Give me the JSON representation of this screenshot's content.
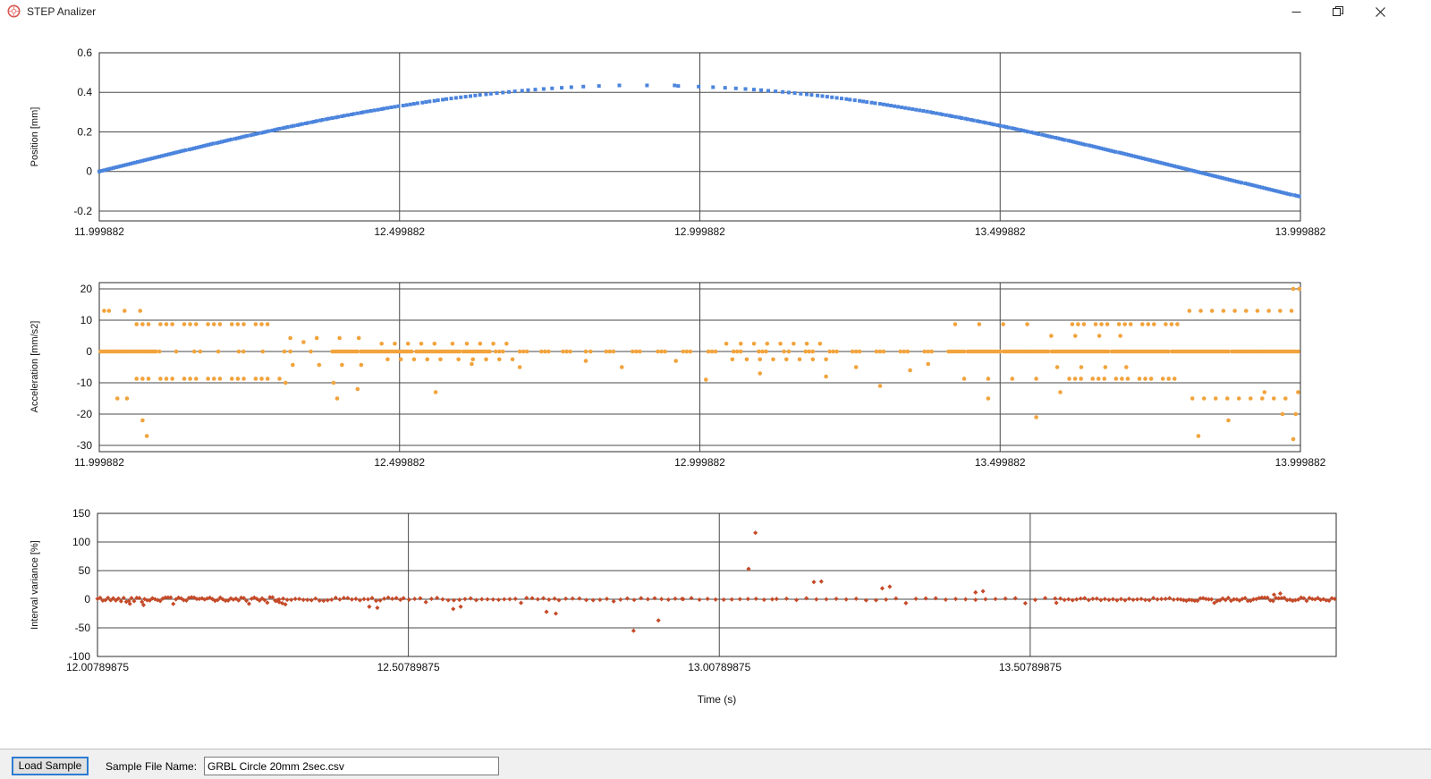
{
  "window": {
    "title": "STEP Analizer"
  },
  "footer": {
    "load_button_label": "Load Sample",
    "file_name_label": "Sample File Name:",
    "file_name_value": "GRBL Circle 20mm 2sec.csv"
  },
  "colors": {
    "position_series": "#4b84dd",
    "acceleration_series": "#f2a33c",
    "variance_series": "#c54a28",
    "grid": "#4a4a4a",
    "frame": "#2b2b2b",
    "tick_text": "#111111",
    "icon_red": "#d9534f",
    "footer_bg": "#f0f0f0",
    "button_border": "#2b7cd3"
  },
  "chart_data": [
    {
      "type": "scatter",
      "name": "position",
      "ylabel": "Position [mm]",
      "marker": "square",
      "xlim": [
        11.999882,
        13.999882
      ],
      "ylim": [
        -0.25,
        0.6
      ],
      "xtick_labels": [
        "11.999882",
        "12.499882",
        "12.999882",
        "13.499882",
        "13.999882"
      ],
      "xtick_values": [
        11.999882,
        12.499882,
        12.999882,
        13.499882,
        13.999882
      ],
      "ytick_values": [
        0.6,
        0.4,
        0.2,
        0,
        -0.2
      ],
      "model": {
        "kind": "quantized_sine",
        "amplitude": 0.435,
        "omega": 1.719,
        "t_start": 11.999882,
        "t_end": 13.999882,
        "step_mm": 0.003,
        "peak_value": 0.435,
        "start_value": 0,
        "end_value": -0.128
      }
    },
    {
      "type": "scatter",
      "name": "acceleration",
      "ylabel": "Acceleration [mm/s2]",
      "marker": "circle",
      "xlim": [
        11.999882,
        13.999882
      ],
      "ylim": [
        -32,
        22
      ],
      "xtick_labels": [
        "11.999882",
        "12.499882",
        "12.999882",
        "13.499882",
        "13.999882"
      ],
      "xtick_values": [
        11.999882,
        12.499882,
        12.999882,
        13.499882,
        13.999882
      ],
      "ytick_values": [
        20,
        10,
        0,
        -10,
        -20,
        -30
      ],
      "zero_runs": [
        [
          12.002,
          12.046,
          15
        ],
        [
          12.05,
          12.094,
          15
        ],
        [
          12.1,
          12.1,
          1
        ],
        [
          12.128,
          12.128,
          1
        ],
        [
          12.158,
          12.168,
          2
        ],
        [
          12.198,
          12.198,
          1
        ],
        [
          12.232,
          12.24,
          2
        ],
        [
          12.272,
          12.272,
          1
        ],
        [
          12.308,
          12.318,
          2
        ],
        [
          12.352,
          12.352,
          1
        ],
        [
          12.388,
          12.43,
          12
        ],
        [
          12.436,
          12.52,
          24
        ],
        [
          12.528,
          12.6,
          20
        ],
        [
          12.606,
          12.65,
          12
        ],
        [
          12.66,
          12.672,
          3
        ],
        [
          12.7,
          12.712,
          3
        ],
        [
          12.736,
          12.748,
          3
        ],
        [
          12.772,
          12.784,
          3
        ],
        [
          12.81,
          12.818,
          2
        ],
        [
          12.844,
          12.856,
          3
        ],
        [
          12.888,
          12.9,
          3
        ],
        [
          12.93,
          12.942,
          3
        ],
        [
          12.972,
          12.984,
          3
        ],
        [
          13.014,
          13.026,
          3
        ],
        [
          13.056,
          13.068,
          3
        ],
        [
          13.098,
          13.11,
          3
        ],
        [
          13.14,
          13.148,
          2
        ],
        [
          13.176,
          13.188,
          3
        ],
        [
          13.216,
          13.228,
          3
        ],
        [
          13.254,
          13.266,
          3
        ],
        [
          13.294,
          13.306,
          3
        ],
        [
          13.334,
          13.346,
          3
        ],
        [
          13.374,
          13.386,
          3
        ],
        [
          13.414,
          13.44,
          7
        ],
        [
          13.446,
          13.5,
          15
        ],
        [
          13.506,
          13.58,
          21
        ],
        [
          13.586,
          13.68,
          27
        ],
        [
          13.686,
          13.78,
          27
        ],
        [
          13.786,
          13.88,
          27
        ],
        [
          13.886,
          13.996,
          30
        ]
      ],
      "clusters": [
        {
          "y": 8.7,
          "runs": [
            [
              12.062,
              12.29,
              24,
              1
            ],
            [
              13.62,
              13.795,
              19,
              1
            ]
          ],
          "xs": [
            13.425,
            13.465,
            13.505,
            13.545
          ]
        },
        {
          "y": -8.7,
          "runs": [
            [
              12.062,
              12.3,
              25,
              1
            ],
            [
              13.615,
              13.8,
              20,
              1
            ]
          ],
          "xs": [
            13.44,
            13.48,
            13.52,
            13.56
          ]
        },
        {
          "y": 13,
          "runs": [
            [
              13.815,
              13.985,
              10
            ]
          ],
          "xs": [
            12.008,
            12.016,
            12.042,
            12.068
          ]
        },
        {
          "y": -15,
          "runs": [
            [
              13.82,
              13.975,
              9
            ]
          ],
          "xs": [
            12.03,
            12.046
          ]
        },
        {
          "y": 4.3,
          "xs": [
            12.318,
            12.362,
            12.4,
            12.432
          ]
        },
        {
          "y": -4.3,
          "xs": [
            12.322,
            12.366,
            12.404,
            12.436
          ]
        },
        {
          "y": 2.5,
          "xs": [
            12.47,
            12.492,
            12.514,
            12.536,
            12.558,
            12.588,
            12.612,
            12.634,
            12.656,
            12.678
          ]
        },
        {
          "y": -2.5,
          "xs": [
            12.48,
            12.502,
            12.524,
            12.546,
            12.568,
            12.598,
            12.622,
            12.644,
            12.666,
            12.688
          ]
        },
        {
          "y": 2.5,
          "xs": [
            13.044,
            13.068,
            13.09,
            13.112,
            13.134,
            13.156,
            13.178,
            13.2
          ]
        },
        {
          "y": -2.5,
          "xs": [
            13.054,
            13.078,
            13.1,
            13.122,
            13.144,
            13.166,
            13.188,
            13.21
          ]
        },
        {
          "y": 5,
          "xs": [
            13.585,
            13.625,
            13.665,
            13.7
          ]
        },
        {
          "y": -5,
          "xs": [
            13.595,
            13.635,
            13.675,
            13.71
          ]
        },
        {
          "y": 20,
          "xs": [
            13.988,
            13.998
          ]
        },
        {
          "y": -20,
          "xs": [
            13.992
          ]
        }
      ],
      "singles": [
        [
          12.072,
          -22
        ],
        [
          12.079,
          -27
        ],
        [
          12.31,
          -10
        ],
        [
          12.39,
          -10
        ],
        [
          12.396,
          -15
        ],
        [
          12.43,
          -12
        ],
        [
          12.56,
          -13
        ],
        [
          12.7,
          -5
        ],
        [
          12.81,
          -3
        ],
        [
          12.87,
          -5
        ],
        [
          12.96,
          -3
        ],
        [
          13.01,
          -9
        ],
        [
          13.1,
          -7
        ],
        [
          13.21,
          -8
        ],
        [
          13.26,
          -5
        ],
        [
          13.3,
          -11
        ],
        [
          13.35,
          -6
        ],
        [
          13.48,
          -15
        ],
        [
          13.56,
          -21
        ],
        [
          13.6,
          -13
        ],
        [
          13.83,
          -27
        ],
        [
          13.88,
          -22
        ],
        [
          13.94,
          -13
        ],
        [
          13.97,
          -20
        ],
        [
          13.988,
          -28
        ],
        [
          13.996,
          -13
        ],
        [
          12.34,
          3
        ],
        [
          12.62,
          -4
        ],
        [
          13.38,
          -4
        ]
      ]
    },
    {
      "type": "scatter",
      "name": "interval_variance",
      "ylabel": "Interval variance [%]",
      "xlabel": "Time (s)",
      "marker": "diamond",
      "xlim": [
        12.00789875,
        14.0
      ],
      "ylim": [
        -100,
        150
      ],
      "xtick_labels": [
        "12.00789875",
        "12.50789875",
        "13.00789875",
        "13.50789875"
      ],
      "xtick_values": [
        12.00789875,
        12.50789875,
        13.00789875,
        13.50789875
      ],
      "ytick_values": [
        150,
        100,
        50,
        0,
        -50,
        -100
      ],
      "baseline_segments": [
        [
          12.008,
          12.3,
          0.0042,
          3.5
        ],
        [
          12.3,
          12.5,
          0.0065,
          3
        ],
        [
          12.5,
          12.75,
          0.009,
          2.5
        ],
        [
          12.75,
          12.95,
          0.011,
          2
        ],
        [
          12.95,
          13.1,
          0.013,
          2
        ],
        [
          13.1,
          13.55,
          0.016,
          2
        ],
        [
          13.55,
          13.75,
          0.0065,
          2
        ],
        [
          13.75,
          13.999,
          0.0045,
          3
        ]
      ],
      "rng_seed": 42,
      "outliers": [
        [
          12.06,
          -8
        ],
        [
          12.082,
          -10
        ],
        [
          12.295,
          -3
        ],
        [
          12.3,
          -5
        ],
        [
          12.305,
          -7
        ],
        [
          12.31,
          -9
        ],
        [
          12.445,
          -13
        ],
        [
          12.458,
          -15
        ],
        [
          12.58,
          -17
        ],
        [
          12.592,
          -13
        ],
        [
          12.73,
          -22
        ],
        [
          12.745,
          -25
        ],
        [
          12.87,
          -55
        ],
        [
          12.91,
          -37
        ],
        [
          13.055,
          53
        ],
        [
          13.066,
          116
        ],
        [
          13.16,
          30
        ],
        [
          13.172,
          31
        ],
        [
          13.27,
          19
        ],
        [
          13.282,
          22
        ],
        [
          13.42,
          12
        ],
        [
          13.432,
          14
        ],
        [
          13.9,
          8
        ],
        [
          13.91,
          10
        ]
      ]
    }
  ]
}
